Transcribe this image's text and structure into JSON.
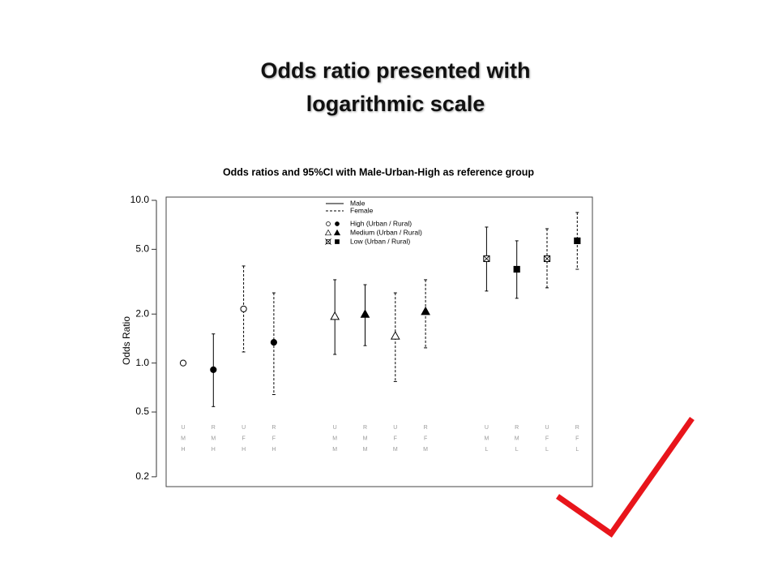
{
  "slide": {
    "title_lines": [
      "Odds ratio presented with",
      "logarithmic scale"
    ]
  },
  "chart_data": {
    "type": "errorbar",
    "title": "Odds ratios and 95%CI with Male-Urban-High as reference group",
    "y_label": "Odds Ratio",
    "log_scale": true,
    "ylim": [
      0.174,
      10.47
    ],
    "yticks": [
      0.2,
      0.5,
      {
        "value": 1,
        "label": "1.0"
      },
      {
        "value": 2,
        "label": "2.0"
      },
      {
        "value": 5,
        "label": "5.0"
      },
      {
        "value": 10,
        "label": "10.0"
      }
    ],
    "categories": [
      [
        "U",
        "M",
        "H"
      ],
      [
        "R",
        "M",
        "H"
      ],
      [
        "U",
        "F",
        "H"
      ],
      [
        "R",
        "F",
        "H"
      ],
      [
        "U",
        "M",
        "M"
      ],
      [
        "R",
        "M",
        "M"
      ],
      [
        "U",
        "F",
        "M"
      ],
      [
        "R",
        "F",
        "M"
      ],
      [
        "U",
        "M",
        "L"
      ],
      [
        "R",
        "M",
        "L"
      ],
      [
        "U",
        "F",
        "L"
      ],
      [
        "R",
        "F",
        "L"
      ]
    ],
    "values": [
      1.0,
      0.91,
      2.15,
      1.34,
      1.94,
      2.0,
      1.47,
      2.08,
      4.38,
      3.77,
      4.38,
      5.64
    ],
    "lower": [
      null,
      0.54,
      1.17,
      0.64,
      1.13,
      1.28,
      0.77,
      1.24,
      2.77,
      2.5,
      2.9,
      3.77
    ],
    "upper": [
      null,
      1.51,
      3.95,
      2.7,
      3.25,
      3.03,
      2.7,
      3.25,
      6.85,
      5.64,
      6.69,
      8.42
    ],
    "shape": [
      "circle",
      "circle",
      "circle",
      "circle",
      "triangle",
      "triangle",
      "triangle",
      "triangle",
      "square",
      "square",
      "square",
      "square"
    ],
    "filled": [
      false,
      true,
      false,
      true,
      false,
      true,
      false,
      true,
      false,
      true,
      false,
      true
    ],
    "dashed": [
      false,
      false,
      true,
      true,
      false,
      false,
      true,
      true,
      false,
      false,
      true,
      true
    ],
    "color": "#000000",
    "legend": {
      "lines": [
        {
          "label": "Male",
          "dashed": false
        },
        {
          "label": "Female",
          "dashed": true
        }
      ],
      "markers": [
        {
          "label": "High (Urban / Rural)",
          "shape": "circle"
        },
        {
          "label": "Medium (Urban / Rural)",
          "shape": "triangle"
        },
        {
          "label": "Low (Urban / Rural)",
          "shape": "square"
        }
      ]
    }
  }
}
